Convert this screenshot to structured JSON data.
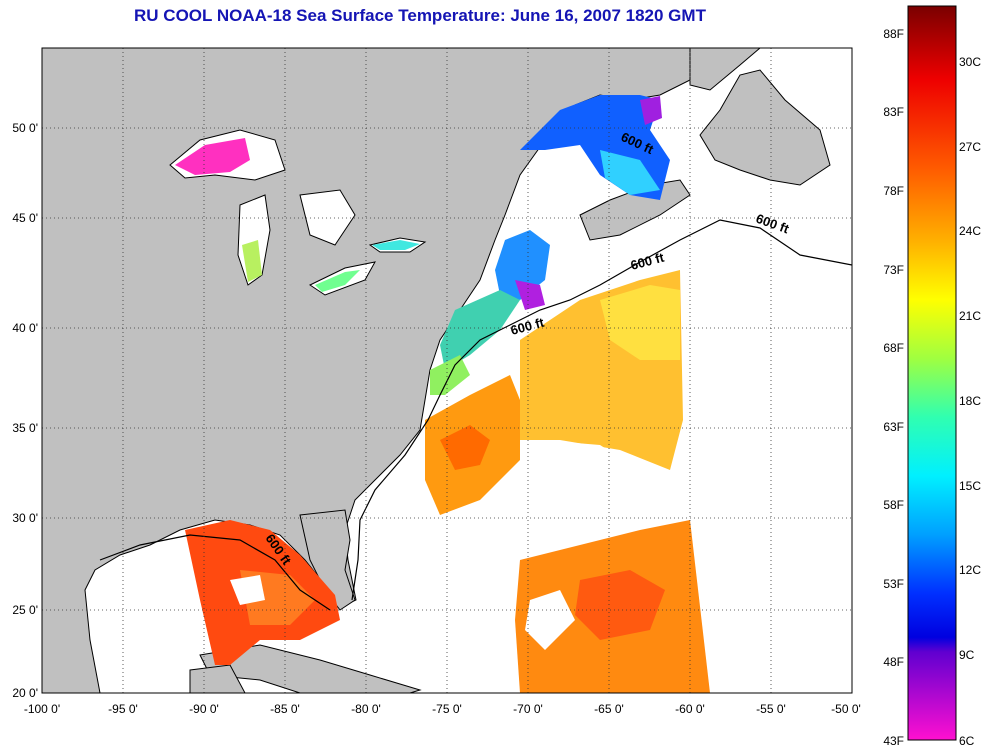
{
  "title": "RU COOL  NOAA-18  Sea Surface Temperature:  June 16, 2007 1820 GMT",
  "map": {
    "lon_labels": [
      "-100 0'",
      "-95 0'",
      "-90 0'",
      "-85 0'",
      "-80 0'",
      "-75 0'",
      "-70 0'",
      "-65 0'",
      "-60 0'",
      "-55 0'",
      "-50 0'"
    ],
    "lat_labels": [
      "50 0'",
      "45 0'",
      "40 0'",
      "35 0'",
      "30 0'",
      "25 0'",
      "20 0'"
    ],
    "contour_label": "600 ft",
    "colors": {
      "land": "#c0c0c0",
      "ocean_no_data": "#ffffff",
      "coast": "#000000"
    }
  },
  "colorbar": {
    "fahrenheit_labels": [
      "88F",
      "83F",
      "78F",
      "73F",
      "68F",
      "63F",
      "58F",
      "53F",
      "48F",
      "43F"
    ],
    "celsius_labels": [
      "30C",
      "27C",
      "24C",
      "21C",
      "18C",
      "15C",
      "12C",
      "9C",
      "6C"
    ],
    "gradient": [
      "#8b0000",
      "#ff0000",
      "#ff7f00",
      "#ffff00",
      "#7fff7f",
      "#00ffff",
      "#0080ff",
      "#0000ff",
      "#ff00ff"
    ]
  }
}
